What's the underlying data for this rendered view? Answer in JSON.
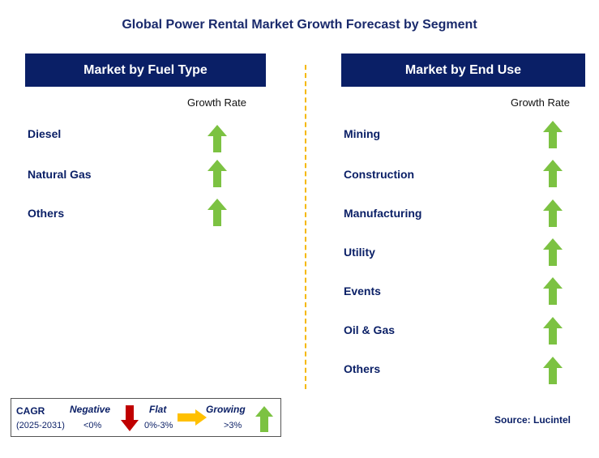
{
  "title": "Global Power Rental Market Growth Forecast by Segment",
  "left_panel": {
    "header": "Market by Fuel Type",
    "growth_label": "Growth Rate",
    "rows": [
      {
        "label": "Diesel",
        "trend": "growing"
      },
      {
        "label": "Natural Gas",
        "trend": "growing"
      },
      {
        "label": "Others",
        "trend": "growing"
      }
    ]
  },
  "right_panel": {
    "header": "Market by End Use",
    "growth_label": "Growth Rate",
    "rows": [
      {
        "label": "Mining",
        "trend": "growing"
      },
      {
        "label": "Construction",
        "trend": "growing"
      },
      {
        "label": "Manufacturing",
        "trend": "growing"
      },
      {
        "label": "Utility",
        "trend": "growing"
      },
      {
        "label": "Events",
        "trend": "growing"
      },
      {
        "label": "Oil & Gas",
        "trend": "growing"
      },
      {
        "label": "Others",
        "trend": "growing"
      }
    ]
  },
  "legend": {
    "cagr": "CAGR",
    "period": "(2025-2031)",
    "negative": "Negative",
    "negative_range": "<0%",
    "flat": "Flat",
    "flat_range": "0%-3%",
    "growing": "Growing",
    "growing_range": ">3%"
  },
  "source": "Source: Lucintel",
  "colors": {
    "header_bg": "#0a1f66",
    "growing": "#7cc242",
    "flat": "#ffc000",
    "negative": "#c00000",
    "divider": "#f5b800"
  }
}
